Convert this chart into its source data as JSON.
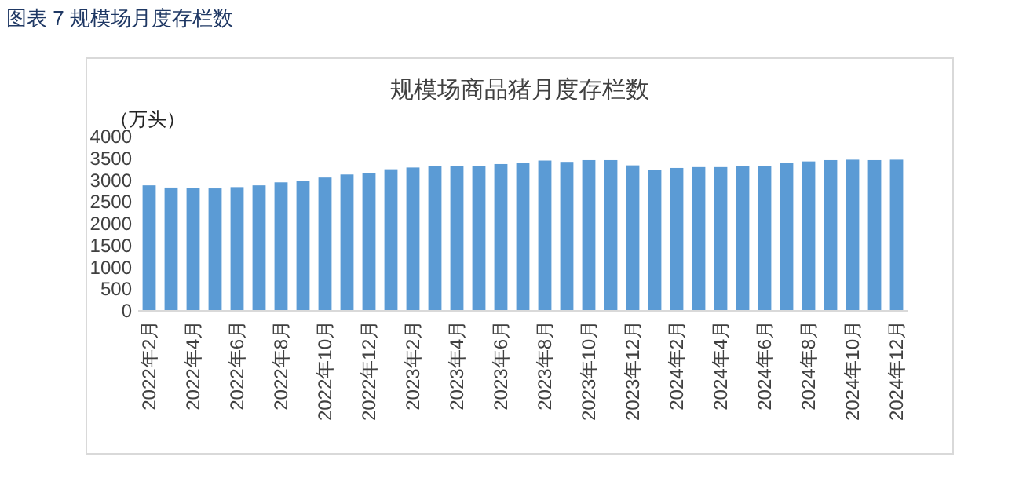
{
  "chart_data": {
    "type": "bar",
    "title": "规模场商品猪月度存栏数",
    "subtitle": "图表 7  规模场月度存栏数",
    "ylabel": "（万头）",
    "categories": [
      "2022年2月",
      null,
      "2022年4月",
      null,
      "2022年6月",
      null,
      "2022年8月",
      null,
      "2022年10月",
      null,
      "2022年12月",
      null,
      "2023年2月",
      null,
      "2023年4月",
      null,
      "2023年6月",
      null,
      "2023年8月",
      null,
      "2023年10月",
      null,
      "2023年12月",
      null,
      "2024年2月",
      null,
      "2024年4月",
      null,
      "2024年6月",
      null,
      "2024年8月",
      null,
      "2024年10月",
      null,
      "2024年12月"
    ],
    "values": [
      2880,
      2830,
      2820,
      2810,
      2840,
      2880,
      2950,
      2990,
      3060,
      3130,
      3170,
      3250,
      3290,
      3330,
      3330,
      3320,
      3370,
      3400,
      3450,
      3420,
      3460,
      3460,
      3340,
      3230,
      3280,
      3300,
      3300,
      3320,
      3320,
      3390,
      3430,
      3460,
      3470,
      3460,
      3470
    ],
    "color": "#5b9bd5",
    "ylim": [
      0,
      4000
    ],
    "yticks": [
      0,
      500,
      1000,
      1500,
      2000,
      2500,
      3000,
      3500,
      4000
    ],
    "grid": false
  }
}
